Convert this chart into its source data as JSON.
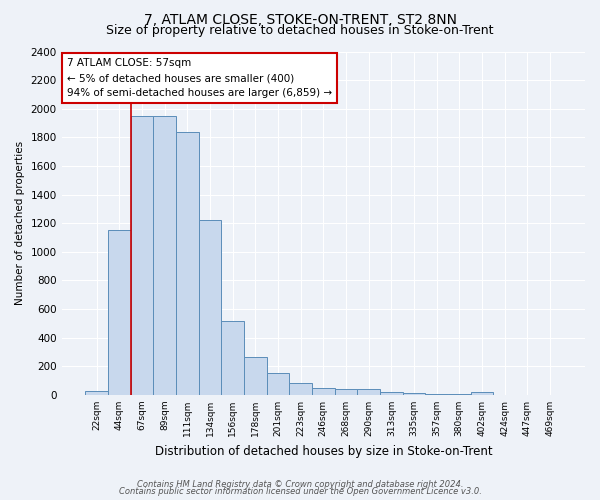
{
  "title1": "7, ATLAM CLOSE, STOKE-ON-TRENT, ST2 8NN",
  "title2": "Size of property relative to detached houses in Stoke-on-Trent",
  "xlabel": "Distribution of detached houses by size in Stoke-on-Trent",
  "ylabel": "Number of detached properties",
  "bar_labels": [
    "22sqm",
    "44sqm",
    "67sqm",
    "89sqm",
    "111sqm",
    "134sqm",
    "156sqm",
    "178sqm",
    "201sqm",
    "223sqm",
    "246sqm",
    "268sqm",
    "290sqm",
    "313sqm",
    "335sqm",
    "357sqm",
    "380sqm",
    "402sqm",
    "424sqm",
    "447sqm",
    "469sqm"
  ],
  "bar_values": [
    25,
    1150,
    1950,
    1950,
    1840,
    1220,
    520,
    265,
    155,
    80,
    50,
    40,
    40,
    18,
    15,
    5,
    5,
    18,
    0,
    0,
    0
  ],
  "bar_color": "#c8d8ed",
  "bar_edge_color": "#5b8db9",
  "vline_color": "#cc0000",
  "ylim": [
    0,
    2400
  ],
  "yticks": [
    0,
    200,
    400,
    600,
    800,
    1000,
    1200,
    1400,
    1600,
    1800,
    2000,
    2200,
    2400
  ],
  "annotation_line1": "7 ATLAM CLOSE: 57sqm",
  "annotation_line2": "← 5% of detached houses are smaller (400)",
  "annotation_line3": "94% of semi-detached houses are larger (6,859) →",
  "annotation_box_color": "#ffffff",
  "annotation_box_edge": "#cc0000",
  "footer1": "Contains HM Land Registry data © Crown copyright and database right 2024.",
  "footer2": "Contains public sector information licensed under the Open Government Licence v3.0.",
  "bg_color": "#eef2f8",
  "grid_color": "#ffffff",
  "title1_fontsize": 10,
  "title2_fontsize": 9,
  "vline_x_idx": 1.5
}
